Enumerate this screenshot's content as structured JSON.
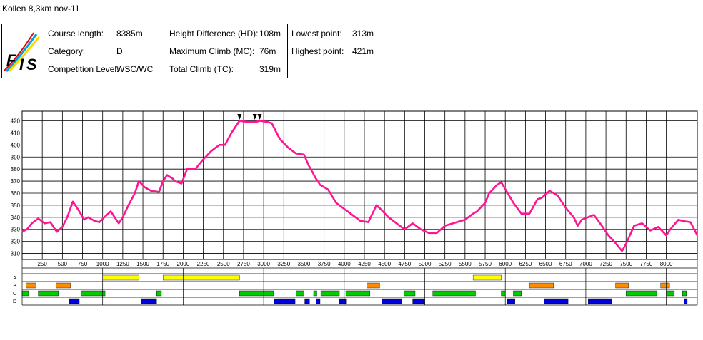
{
  "page": {
    "title": "Kollen 8,3km nov-11",
    "logo_text": "FIS",
    "colors": {
      "profile": "#ff1493",
      "A": "#ffff00",
      "B": "#ff8c00",
      "C": "#00cc00",
      "D": "#0000dd"
    }
  },
  "info": {
    "course_length": {
      "label": "Course length:",
      "value": "8385m"
    },
    "category": {
      "label": "Category:",
      "value": "D"
    },
    "competition_level": {
      "label": "Competition Level:",
      "value": "WSC/WC"
    },
    "height_difference": {
      "label": "Height Difference (HD):",
      "value": "108m"
    },
    "maximum_climb": {
      "label": "Maximum Climb (MC):",
      "value": "76m"
    },
    "total_climb": {
      "label": "Total Climb (TC):",
      "value": "319m"
    },
    "lowest_point": {
      "label": "Lowest point:",
      "value": "313m"
    },
    "highest_point": {
      "label": "Highest point:",
      "value": "421m"
    }
  },
  "chart_data": {
    "type": "line",
    "title": "",
    "xlabel": "",
    "ylabel": "",
    "xlim": [
      0,
      8385
    ],
    "ylim": [
      305,
      428
    ],
    "grid": true,
    "x_ticks": [
      250,
      500,
      750,
      1000,
      1250,
      1500,
      1750,
      2000,
      2250,
      2500,
      2750,
      3000,
      3250,
      3500,
      3750,
      4000,
      4250,
      4500,
      4750,
      5000,
      5250,
      5500,
      5750,
      6000,
      6250,
      6500,
      6750,
      7000,
      7250,
      7500,
      7750,
      8000
    ],
    "x_major_ticks": [
      1000,
      2000,
      3000,
      4000,
      5000,
      6000,
      7000,
      8000
    ],
    "y_ticks": [
      310,
      320,
      330,
      340,
      350,
      360,
      370,
      380,
      390,
      400,
      410,
      420
    ],
    "marker_x": [
      2700,
      2890,
      2950
    ],
    "series": [
      {
        "x": [
          0,
          60,
          120,
          200,
          280,
          350,
          430,
          500,
          560,
          630,
          700,
          770,
          820,
          900,
          960,
          1020,
          1100,
          1200,
          1250,
          1320,
          1400,
          1450,
          1520,
          1600,
          1700,
          1750,
          1800,
          1870,
          1900,
          1980,
          2050,
          2150,
          2250,
          2350,
          2450,
          2520,
          2600,
          2700,
          2800,
          2900,
          2950,
          3050,
          3100,
          3200,
          3300,
          3400,
          3500,
          3560,
          3650,
          3700,
          3800,
          3900,
          4000,
          4100,
          4200,
          4300,
          4400,
          4450,
          4550,
          4650,
          4750,
          4850,
          4950,
          5050,
          5150,
          5250,
          5350,
          5450,
          5500,
          5600,
          5650,
          5750,
          5800,
          5900,
          5950,
          6100,
          6200,
          6300,
          6400,
          6450,
          6550,
          6650,
          6750,
          6850,
          6900,
          6950,
          7100,
          7200,
          7280,
          7350,
          7450,
          7500,
          7600,
          7700,
          7800,
          7900,
          8000,
          8050,
          8150,
          8200,
          8300,
          8385
        ],
        "values": [
          328,
          330,
          335,
          339,
          335,
          336,
          328,
          332,
          340,
          353,
          346,
          338,
          340,
          337,
          336,
          340,
          345,
          335,
          340,
          350,
          360,
          370,
          365,
          362,
          361,
          370,
          375,
          372,
          370,
          368,
          380,
          380,
          388,
          395,
          400,
          400,
          410,
          420,
          419,
          419,
          420,
          419,
          418,
          405,
          398,
          393,
          392,
          383,
          372,
          367,
          363,
          352,
          347,
          342,
          337,
          336,
          350,
          347,
          340,
          335,
          330,
          335,
          330,
          327,
          327,
          333,
          335,
          337,
          338,
          343,
          345,
          352,
          360,
          367,
          369,
          352,
          343,
          343,
          355,
          356,
          362,
          358,
          348,
          340,
          333,
          338,
          342,
          333,
          325,
          320,
          312,
          318,
          333,
          335,
          329,
          332,
          325,
          330,
          338,
          337,
          336,
          325
        ]
      }
    ],
    "bands": [
      {
        "name": "A",
        "segments": [
          [
            0,
            1000,
            "white"
          ],
          [
            1000,
            1450,
            "yellow"
          ],
          [
            1450,
            1750,
            "white"
          ],
          [
            1750,
            2700,
            "yellow"
          ],
          [
            2700,
            5600,
            "white"
          ],
          [
            5600,
            5950,
            "yellow"
          ],
          [
            5950,
            8385,
            "white"
          ]
        ]
      },
      {
        "name": "B",
        "segments": [
          [
            0,
            50,
            "white"
          ],
          [
            50,
            170,
            "orange"
          ],
          [
            170,
            420,
            "white"
          ],
          [
            420,
            600,
            "orange"
          ],
          [
            600,
            4280,
            "white"
          ],
          [
            4280,
            4440,
            "orange"
          ],
          [
            4440,
            6300,
            "white"
          ],
          [
            6300,
            6600,
            "orange"
          ],
          [
            6600,
            7370,
            "white"
          ],
          [
            7370,
            7530,
            "orange"
          ],
          [
            7530,
            7930,
            "white"
          ],
          [
            7930,
            8040,
            "orange"
          ],
          [
            8040,
            8385,
            "white"
          ]
        ]
      },
      {
        "name": "C",
        "segments": [
          [
            0,
            80,
            "green"
          ],
          [
            80,
            200,
            "white"
          ],
          [
            200,
            450,
            "green"
          ],
          [
            450,
            730,
            "white"
          ],
          [
            730,
            1030,
            "green"
          ],
          [
            1030,
            1670,
            "white"
          ],
          [
            1670,
            1730,
            "green"
          ],
          [
            1730,
            2700,
            "white"
          ],
          [
            2700,
            3120,
            "green"
          ],
          [
            3120,
            3400,
            "white"
          ],
          [
            3400,
            3500,
            "green"
          ],
          [
            3500,
            3620,
            "white"
          ],
          [
            3620,
            3660,
            "green"
          ],
          [
            3660,
            3710,
            "white"
          ],
          [
            3710,
            3940,
            "green"
          ],
          [
            3940,
            4020,
            "white"
          ],
          [
            4020,
            4320,
            "green"
          ],
          [
            4320,
            4740,
            "white"
          ],
          [
            4740,
            4880,
            "green"
          ],
          [
            4880,
            5100,
            "white"
          ],
          [
            5100,
            5630,
            "green"
          ],
          [
            5630,
            5950,
            "white"
          ],
          [
            5950,
            6000,
            "green"
          ],
          [
            6000,
            6100,
            "white"
          ],
          [
            6100,
            6200,
            "green"
          ],
          [
            6200,
            7500,
            "white"
          ],
          [
            7500,
            7880,
            "green"
          ],
          [
            7880,
            8000,
            "white"
          ],
          [
            8000,
            8100,
            "green"
          ],
          [
            8100,
            8200,
            "white"
          ],
          [
            8200,
            8250,
            "green"
          ],
          [
            8250,
            8385,
            "white"
          ]
        ]
      },
      {
        "name": "D",
        "segments": [
          [
            0,
            580,
            "white"
          ],
          [
            580,
            710,
            "blue"
          ],
          [
            710,
            1480,
            "white"
          ],
          [
            1480,
            1670,
            "blue"
          ],
          [
            1670,
            3130,
            "white"
          ],
          [
            3130,
            3390,
            "blue"
          ],
          [
            3390,
            3510,
            "white"
          ],
          [
            3510,
            3570,
            "blue"
          ],
          [
            3570,
            3650,
            "white"
          ],
          [
            3650,
            3700,
            "blue"
          ],
          [
            3700,
            3940,
            "white"
          ],
          [
            3940,
            4030,
            "blue"
          ],
          [
            4030,
            4470,
            "white"
          ],
          [
            4470,
            4710,
            "blue"
          ],
          [
            4710,
            4850,
            "white"
          ],
          [
            4850,
            5000,
            "blue"
          ],
          [
            5000,
            6020,
            "white"
          ],
          [
            6020,
            6120,
            "blue"
          ],
          [
            6120,
            6480,
            "white"
          ],
          [
            6480,
            6780,
            "blue"
          ],
          [
            6780,
            7030,
            "white"
          ],
          [
            7030,
            7320,
            "blue"
          ],
          [
            7320,
            8220,
            "white"
          ],
          [
            8220,
            8260,
            "blue"
          ],
          [
            8260,
            8385,
            "white"
          ]
        ]
      }
    ]
  }
}
